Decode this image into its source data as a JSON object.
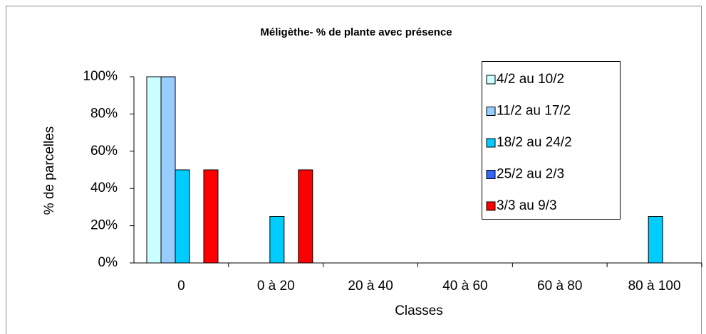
{
  "chart_data": {
    "type": "bar",
    "title": "Méligèthe- % de plante avec présence",
    "x_label": "Classes",
    "y_label": "% de parcelles",
    "categories": [
      "0",
      "0 à 20",
      "20 à 40",
      "40 à 60",
      "60 à 80",
      "80 à 100"
    ],
    "series": [
      {
        "name": "4/2 au 10/2",
        "color": "#ccffff",
        "values": [
          100,
          0,
          0,
          0,
          0,
          0
        ]
      },
      {
        "name": "11/2 au 17/2",
        "color": "#99ccff",
        "values": [
          100,
          0,
          0,
          0,
          0,
          0
        ]
      },
      {
        "name": "18/2 au 24/2",
        "color": "#00ccff",
        "values": [
          50,
          25,
          0,
          0,
          0,
          25
        ]
      },
      {
        "name": "25/2 au 2/3",
        "color": "#3366ff",
        "values": [
          0,
          0,
          0,
          0,
          0,
          0
        ]
      },
      {
        "name": "3/3 au 9/3",
        "color": "#ff0000",
        "values": [
          50,
          50,
          0,
          0,
          0,
          0
        ]
      }
    ],
    "ylim": [
      0,
      100
    ],
    "yticks": [
      {
        "value": 0,
        "label": "0%"
      },
      {
        "value": 20,
        "label": "20%"
      },
      {
        "value": 40,
        "label": "40%"
      },
      {
        "value": 60,
        "label": "60%"
      },
      {
        "value": 80,
        "label": "80%"
      },
      {
        "value": 100,
        "label": "100%"
      }
    ],
    "grid": false,
    "legend": "right"
  }
}
